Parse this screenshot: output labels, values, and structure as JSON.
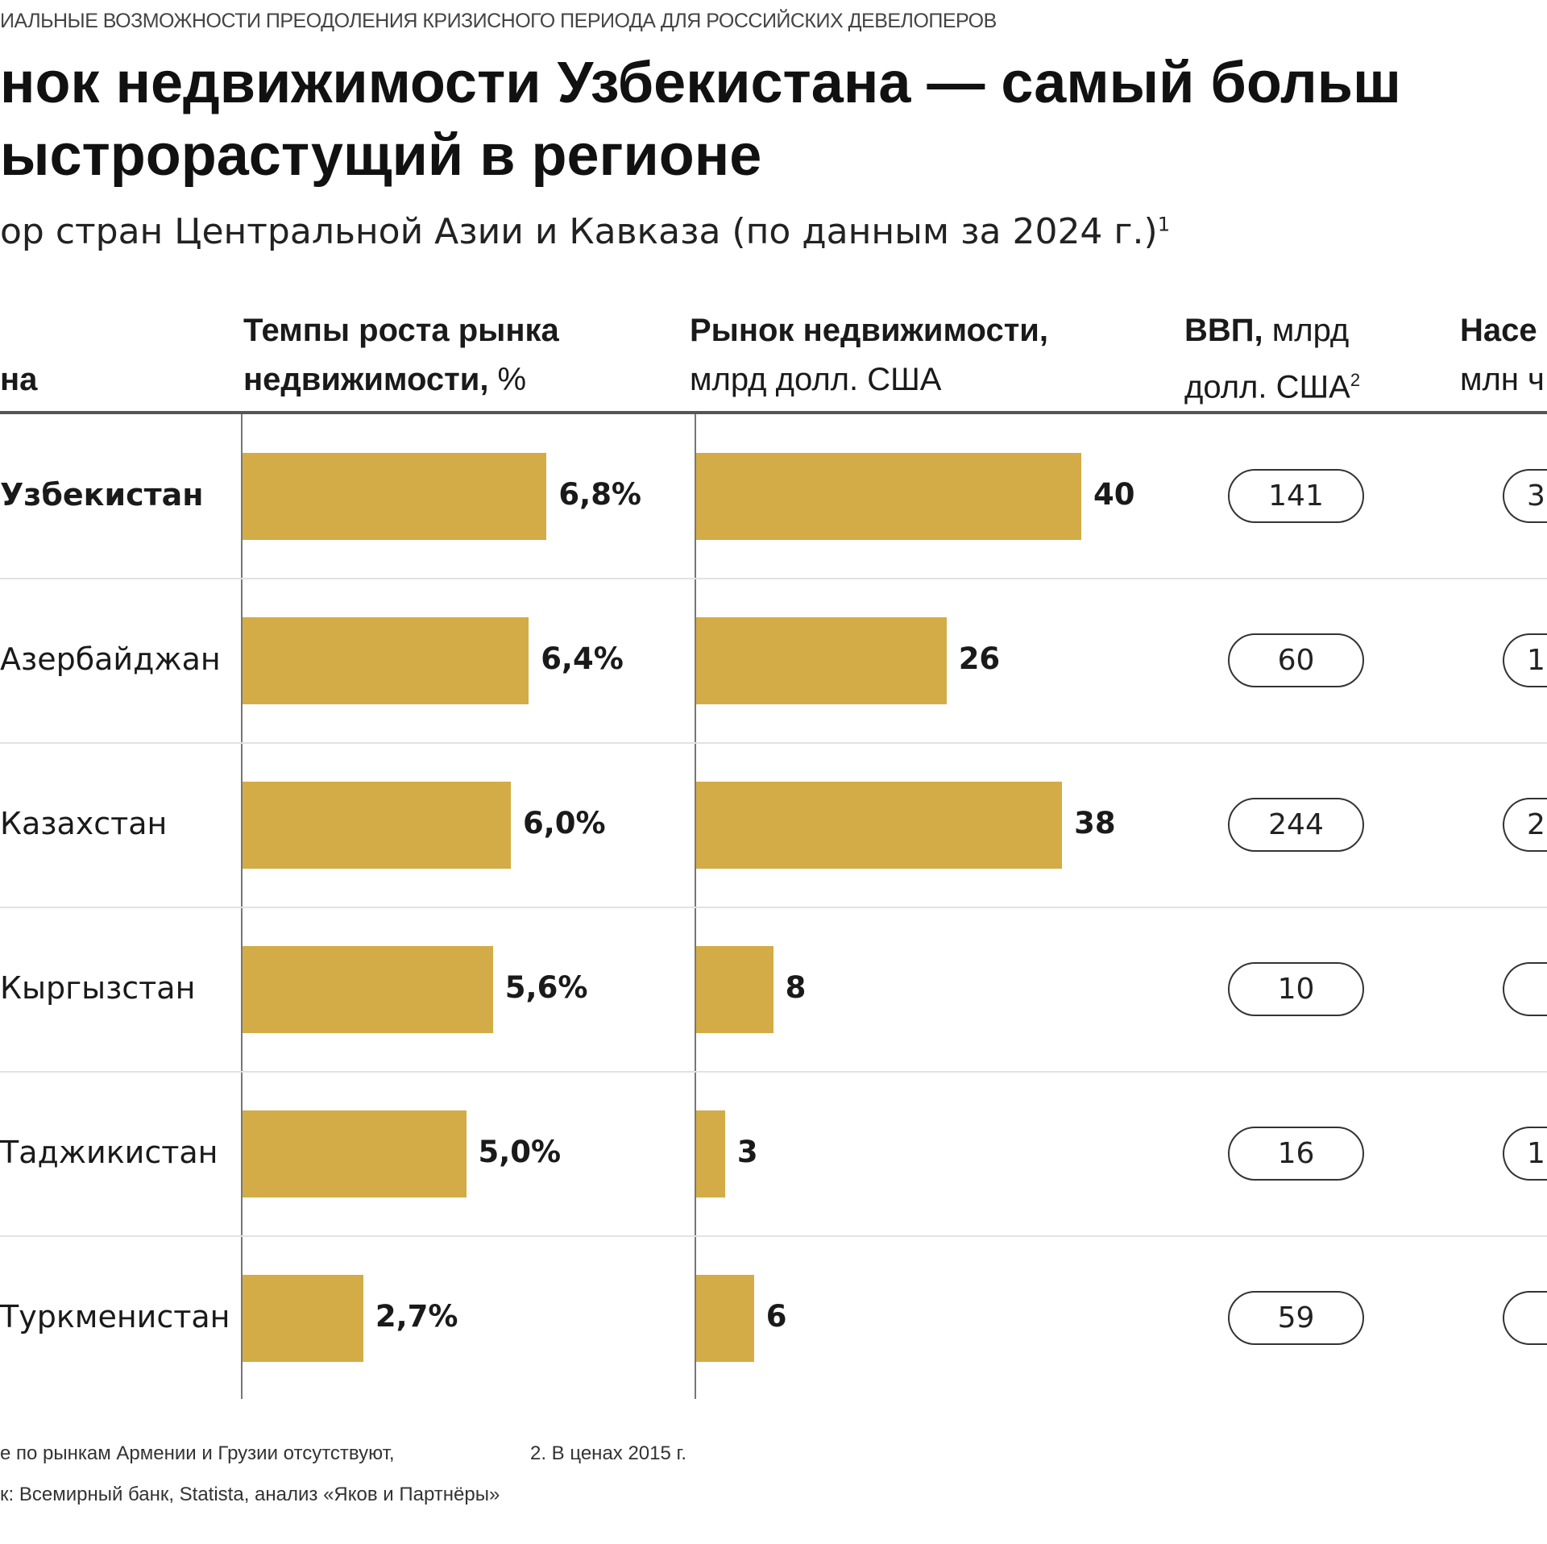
{
  "kicker": "ИАЛЬНЫЕ ВОЗМОЖНОСТИ ПРЕОДОЛЕНИЯ КРИЗИСНОГО ПЕРИОДА ДЛЯ РОССИЙСКИХ ДЕВЕЛОПЕРОВ",
  "title_line1": "нок недвижимости Узбекистана — самый больш",
  "title_line2": "ыстрорастущий в регионе",
  "subtitle": "ор стран Центральной Азии и Кавказа (по данным за 2024 г.)",
  "subtitle_sup": "1",
  "headers": {
    "country": "на",
    "growth_bold": "Темпы роста рынка",
    "growth_bold2": "недвижимости,",
    "growth_unit": " %",
    "market_bold": "Рынок недвижимости,",
    "market_unit": "млрд долл. США",
    "gdp_bold": "ВВП,",
    "gdp_unit1": " млрд",
    "gdp_unit2": "долл. США",
    "gdp_sup": "2",
    "pop_bold": "Насе",
    "pop_unit": "млн ч"
  },
  "chart_data": {
    "type": "bar",
    "categories": [
      "Узбекистан",
      "Азербайджан",
      "Казахстан",
      "Кыргызстан",
      "Таджикистан",
      "Туркменистан"
    ],
    "series": [
      {
        "name": "Темпы роста рынка недвижимости, %",
        "values": [
          6.8,
          6.4,
          6.0,
          5.6,
          5.0,
          2.7
        ],
        "labels": [
          "6,8%",
          "6,4%",
          "6,0%",
          "5,6%",
          "5,0%",
          "2,7%"
        ]
      },
      {
        "name": "Рынок недвижимости, млрд долл. США",
        "values": [
          40,
          26,
          38,
          8,
          3,
          6
        ],
        "labels": [
          "40",
          "26",
          "38",
          "8",
          "3",
          "6"
        ]
      }
    ],
    "gdp": [
      "141",
      "60",
      "244",
      "10",
      "16",
      "59"
    ],
    "population_partial": [
      "3",
      "1",
      "2",
      "",
      "1",
      ""
    ],
    "highlight": "Узбекистан",
    "bar_color": "#D3AC47",
    "orientation": "horizontal"
  },
  "footnotes": {
    "note1": "е по рынкам Армении и Грузии отсутствуют,",
    "note2": "2. В ценах 2015 г.",
    "source": "к: Всемирный банк, Statista, анализ «Яков и Партнёры»"
  }
}
